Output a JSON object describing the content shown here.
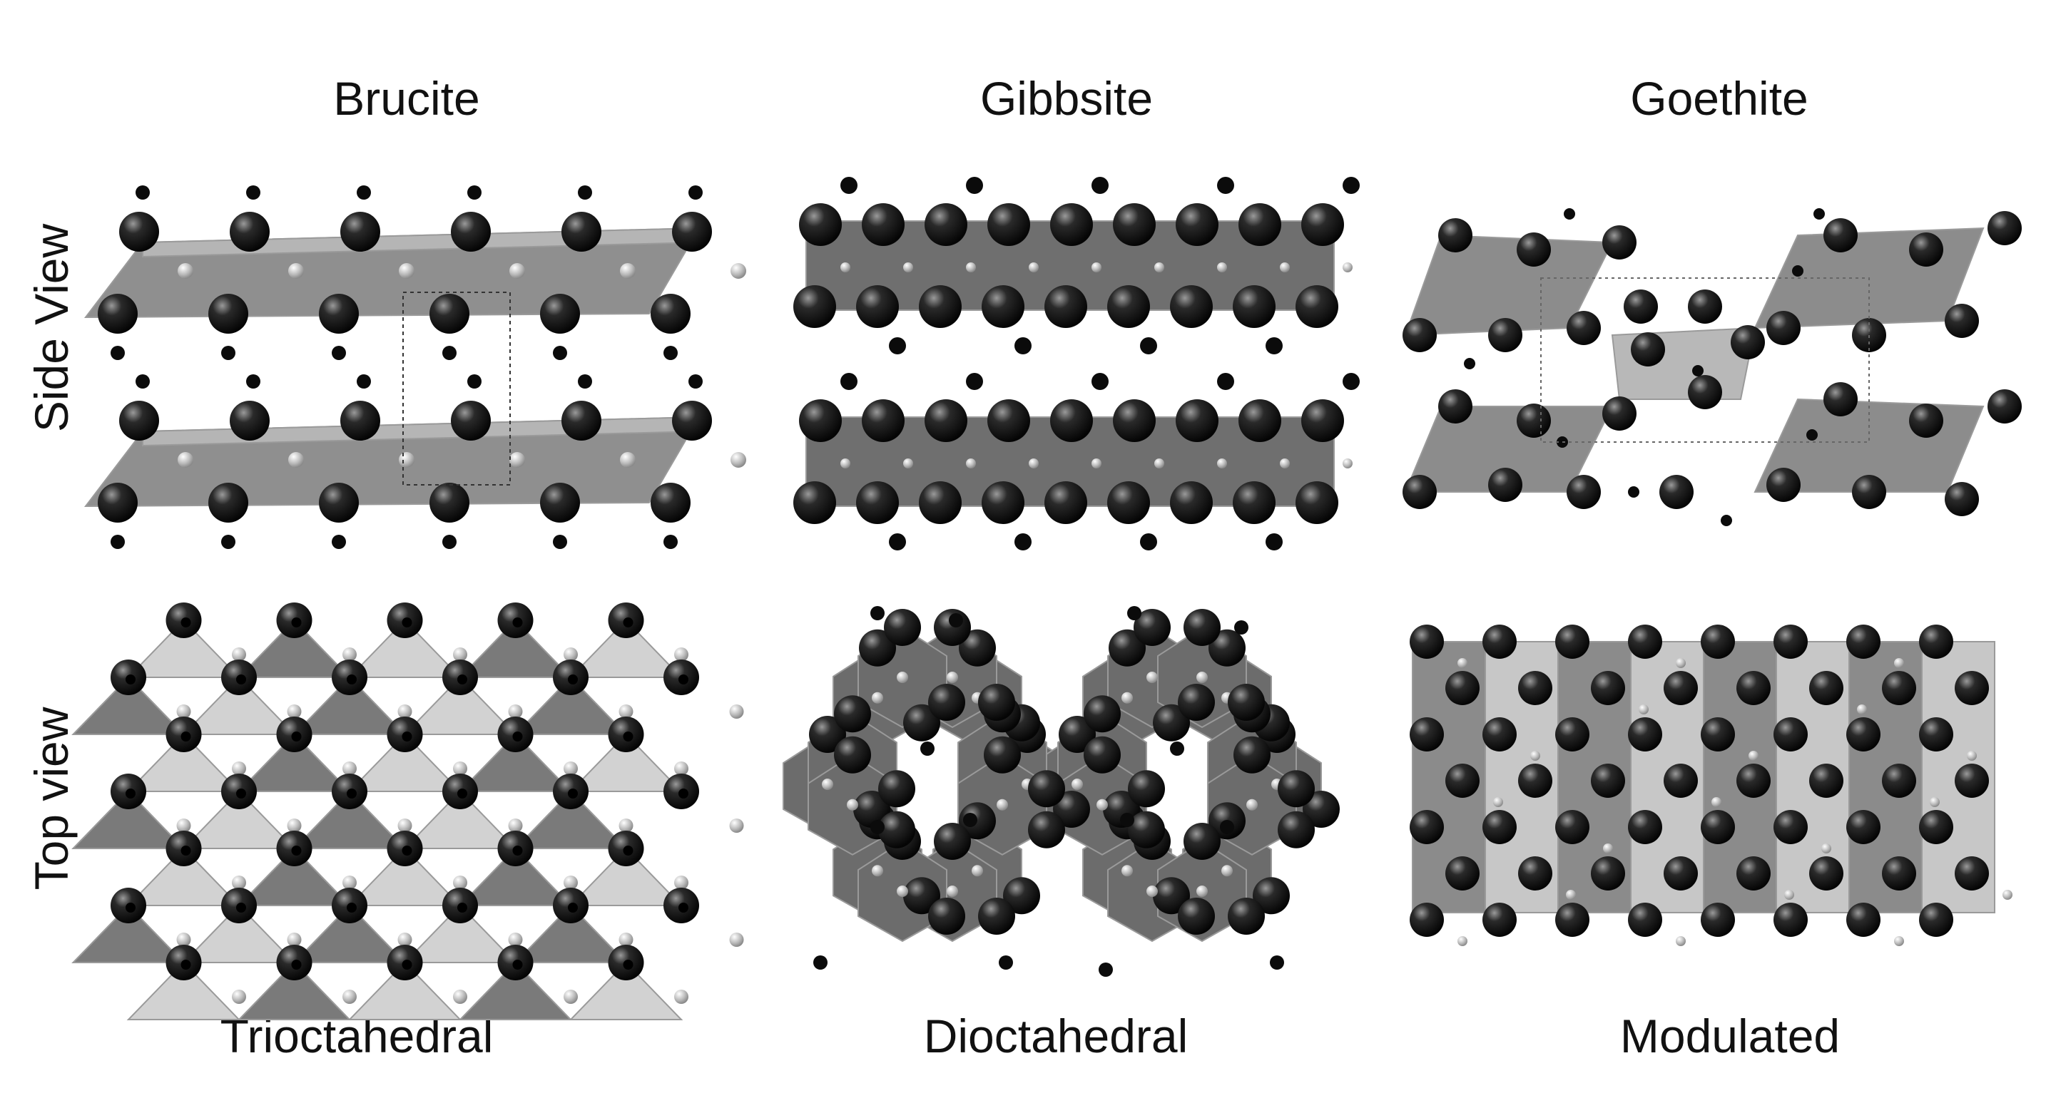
{
  "figure": {
    "columns": [
      {
        "title": "Brucite",
        "type_label": "Trioctahedral"
      },
      {
        "title": "Gibbsite",
        "type_label": "Dioctahedral"
      },
      {
        "title": "Goethite",
        "type_label": "Modulated"
      }
    ],
    "rows": [
      {
        "label": "Side View"
      },
      {
        "label": "Top view"
      }
    ]
  }
}
